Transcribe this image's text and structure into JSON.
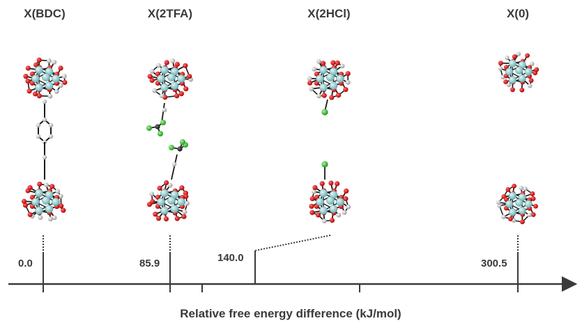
{
  "labels": {
    "bdc": "X(BDC)",
    "tfa": "X(2TFA)",
    "hcl": "X(2HCl)",
    "zero": "X(0)"
  },
  "values": {
    "bdc": "0.0",
    "tfa": "85.9",
    "hcl": "140.0",
    "zero": "300.5"
  },
  "axis": {
    "title": "Relative free energy difference (kJ/mol)"
  },
  "colors": {
    "zirconium": "#8fc9cb",
    "oxygen": "#d81e1e",
    "hydrogen": "#d9d9d9",
    "chlorine_fluorine": "#43c23a",
    "bond": "#1a1a1a",
    "axis": "#3a3a3a"
  }
}
